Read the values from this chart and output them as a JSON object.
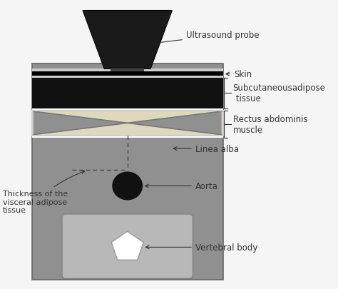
{
  "bg_color": "#f5f5f5",
  "main_box_color": "#909090",
  "skin_color": "#000000",
  "subcut_color": "#111111",
  "muscle_color": "#ddd8be",
  "aorta_color": "#111111",
  "vertebra_color": "#b8b8b8",
  "probe_color": "#1a1a1a",
  "white": "#ffffff",
  "dark_gray": "#555555",
  "label_fontsize": 8.5,
  "label_color": "#333333",
  "labels": {
    "probe": "Ultrasound probe",
    "skin": "Skin",
    "subcut": "Subcutaneousadipose\n tissue",
    "rectus": "Rectus abdominis\nmuscle",
    "linea": "Linea alba",
    "aorta": "Aorta",
    "vertebral": "Vertebral body",
    "thickness": "Thickness of the\nvisceral adipose\ntissue"
  }
}
